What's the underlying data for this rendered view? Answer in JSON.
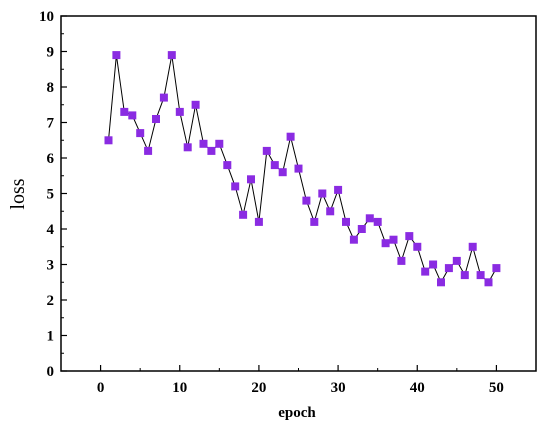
{
  "chart_data": {
    "type": "line",
    "markers": "square",
    "title": "",
    "xlabel": "epoch",
    "ylabel": "loss",
    "xlim": [
      -5,
      55
    ],
    "ylim": [
      0,
      10
    ],
    "xticks": [
      0,
      10,
      20,
      30,
      40,
      50
    ],
    "xtick_labels": [
      "0",
      "10",
      "20",
      "30",
      "40",
      "50"
    ],
    "yticks": [
      0,
      1,
      2,
      3,
      4,
      5,
      6,
      7,
      8,
      9,
      10
    ],
    "ytick_labels": [
      "0",
      "1",
      "2",
      "3",
      "4",
      "5",
      "6",
      "7",
      "8",
      "9",
      "10"
    ],
    "grid": false,
    "legend": false,
    "colors": {
      "marker": "#8A2BE2",
      "line": "#000000",
      "axes": "#000000",
      "background": "#ffffff"
    },
    "series": [
      {
        "x": [
          1,
          2,
          3,
          4,
          5,
          6,
          7,
          8,
          9,
          10,
          11,
          12,
          13,
          14,
          15,
          16,
          17,
          18,
          19,
          20,
          21,
          22,
          23,
          24,
          25,
          26,
          27,
          28,
          29,
          30,
          31,
          32,
          33,
          34,
          35,
          36,
          37,
          38,
          39,
          40,
          41,
          42,
          43,
          44,
          45,
          46,
          47,
          48,
          49,
          50
        ],
        "values": [
          6.5,
          8.9,
          7.3,
          7.2,
          6.7,
          6.2,
          7.1,
          7.7,
          8.9,
          7.3,
          6.3,
          7.5,
          6.4,
          6.2,
          6.4,
          5.8,
          5.2,
          4.4,
          5.4,
          4.2,
          6.2,
          5.8,
          5.6,
          6.6,
          5.7,
          4.8,
          4.2,
          5.0,
          4.5,
          5.1,
          4.2,
          3.7,
          4.0,
          4.3,
          4.2,
          3.6,
          3.7,
          3.1,
          3.8,
          3.5,
          2.8,
          3.0,
          2.5,
          2.9,
          3.1,
          2.7,
          3.5,
          2.7,
          2.5,
          2.9
        ]
      }
    ]
  }
}
